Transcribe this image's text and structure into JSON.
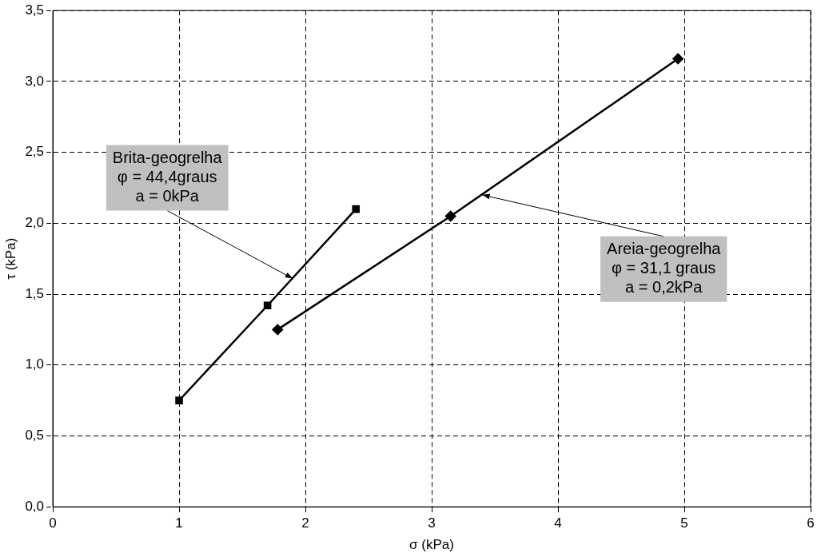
{
  "chart_data": {
    "type": "line",
    "xlabel": "σ (kPa)",
    "ylabel": "τ (kPa)",
    "series": [
      {
        "color": "#000000",
        "marker": "square",
        "x": [
          1.0,
          1.7,
          2.4
        ],
        "values": [
          0.75,
          1.42,
          2.1
        ]
      },
      {
        "color": "#000000",
        "marker": "diamond",
        "x": [
          1.78,
          3.15,
          4.95
        ],
        "values": [
          1.25,
          2.05,
          3.16
        ]
      }
    ],
    "xlim": [
      0,
      6
    ],
    "xticks": [
      0,
      1,
      2,
      3,
      4,
      5,
      6
    ],
    "ylim": [
      0,
      3.5
    ],
    "yticks": [
      {
        "value": 0,
        "label": "0,0"
      },
      {
        "value": 0.5,
        "label": "0,5"
      },
      {
        "value": 1,
        "label": "1,0"
      },
      {
        "value": 1.5,
        "label": "1,5"
      },
      {
        "value": 2,
        "label": "2,0"
      },
      {
        "value": 2.5,
        "label": "2,5"
      },
      {
        "value": 3,
        "label": "3,0"
      },
      {
        "value": 3.5,
        "label": "3,5"
      }
    ],
    "grid": true,
    "legend": false,
    "line_style": "solid",
    "annotations": [
      {
        "text": "Brita-geogrelha\nφ = 44,4graus\na = 0kPa",
        "x": 1.9,
        "y": 1.61
      },
      {
        "text": "Areia-geogrelha\nφ = 31,1 graus\na = 0,2kPa",
        "x": 3.4,
        "y": 2.2
      }
    ]
  }
}
